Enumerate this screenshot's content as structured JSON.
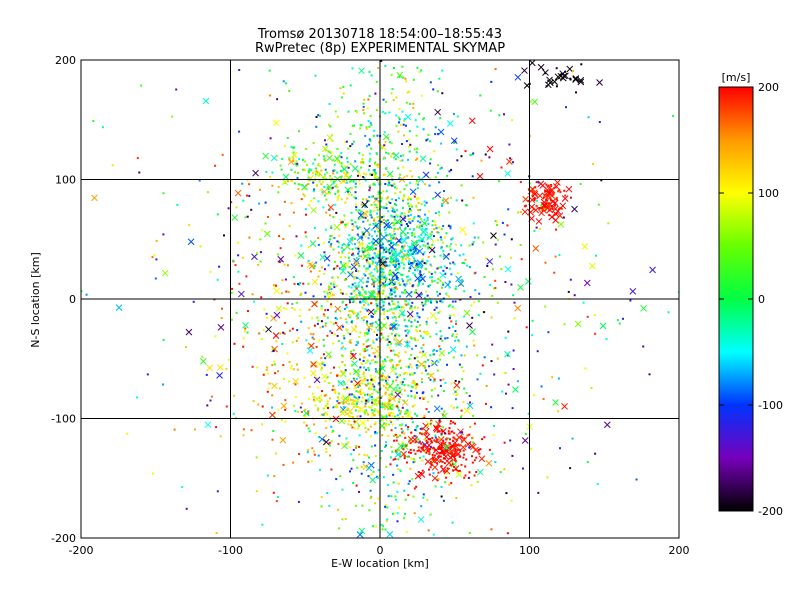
{
  "chart_data": {
    "type": "scatter",
    "title": "Tromsø 20130718 18:54:00–18:55:43",
    "subtitle": "RwPretec (8p) EXPERIMENTAL SKYMAP",
    "xlabel": "E-W location [km]",
    "ylabel": "N-S location [km]",
    "xlim": [
      -200,
      200
    ],
    "ylim": [
      -200,
      200
    ],
    "xticks": [
      -200,
      -100,
      0,
      100,
      200
    ],
    "yticks": [
      -200,
      -100,
      0,
      100,
      200
    ],
    "reference_lines": {
      "x": [
        -100,
        0,
        100
      ],
      "y": [
        -100,
        0,
        100
      ]
    },
    "markers": [
      "dot",
      "x"
    ],
    "colorbar": {
      "label": "[m/s]",
      "range": [
        -200,
        200
      ],
      "ticks": [
        200,
        100,
        0,
        -100,
        -200
      ],
      "colormap_stops": [
        {
          "value": 200,
          "color": "#ff0000"
        },
        {
          "value": 150,
          "color": "#ff9900"
        },
        {
          "value": 100,
          "color": "#ffff00"
        },
        {
          "value": 50,
          "color": "#66ff00"
        },
        {
          "value": 0,
          "color": "#00ff44"
        },
        {
          "value": -50,
          "color": "#00ffff"
        },
        {
          "value": -100,
          "color": "#0033ff"
        },
        {
          "value": -150,
          "color": "#7700bb"
        },
        {
          "value": -200,
          "color": "#000000"
        }
      ]
    },
    "clusters": [
      {
        "x": 5,
        "y": 10,
        "sx": 22,
        "sy": 95,
        "vmin": -110,
        "vmax": 140,
        "dots": 1600,
        "xs": 90
      },
      {
        "x": 10,
        "y": 35,
        "sx": 18,
        "sy": 22,
        "vmin": -110,
        "vmax": 10,
        "dots": 280,
        "xs": 45
      },
      {
        "x": 42,
        "y": -127,
        "sx": 12,
        "sy": 11,
        "vmin": 185,
        "vmax": 210,
        "dots": 220,
        "xs": 50
      },
      {
        "x": 112,
        "y": 82,
        "sx": 9,
        "sy": 9,
        "vmin": 180,
        "vmax": 210,
        "dots": 60,
        "xs": 45
      },
      {
        "x": 115,
        "y": 190,
        "sx": 12,
        "sy": 7,
        "vmin": -210,
        "vmax": -185,
        "dots": 12,
        "xs": 22
      },
      {
        "x": -40,
        "y": 105,
        "sx": 16,
        "sy": 12,
        "vmin": -40,
        "vmax": 150,
        "dots": 140,
        "xs": 18
      },
      {
        "x": -10,
        "y": -85,
        "sx": 16,
        "sy": 14,
        "vmin": 60,
        "vmax": 140,
        "dots": 180,
        "xs": 14
      },
      {
        "x": -50,
        "y": -40,
        "sx": 30,
        "sy": 60,
        "vmin": 80,
        "vmax": 210,
        "dots": 260,
        "xs": 22
      },
      {
        "x": 40,
        "y": 0,
        "sx": 60,
        "sy": 110,
        "vmin": -200,
        "vmax": 200,
        "dots": 500,
        "xs": 80
      },
      {
        "x": -60,
        "y": 30,
        "sx": 70,
        "sy": 90,
        "vmin": -200,
        "vmax": 200,
        "dots": 200,
        "xs": 40
      }
    ]
  }
}
